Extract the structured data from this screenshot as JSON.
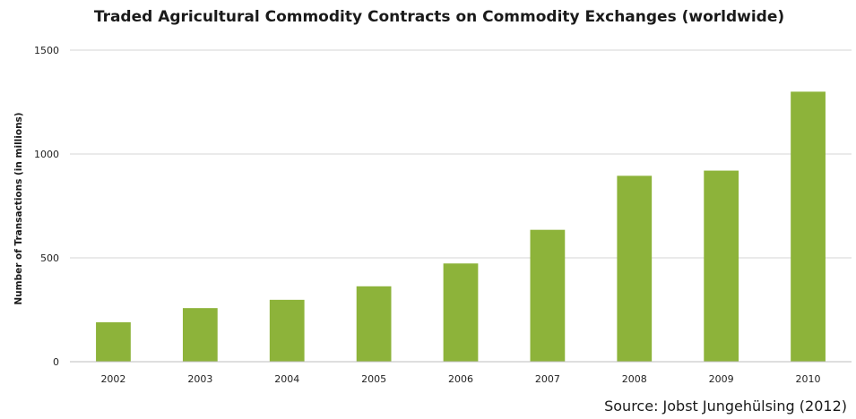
{
  "chart_data": {
    "type": "bar",
    "title": "Traded Agricultural Commodity Contracts on Commodity Exchanges (worldwide)",
    "xlabel": "",
    "ylabel": "Number of Transactions (in millions)",
    "categories": [
      "2002",
      "2003",
      "2004",
      "2005",
      "2006",
      "2007",
      "2008",
      "2009",
      "2010"
    ],
    "series": [
      {
        "values": [
          190,
          258,
          298,
          363,
          473,
          635,
          895,
          920,
          1300
        ]
      }
    ],
    "ylim": [
      0,
      1500
    ],
    "yticks": [
      0,
      500,
      1000,
      1500
    ],
    "grid": true,
    "legend": "none",
    "bar_color": "#8db33a",
    "source": "Source: Jobst Jungehülsing (2012)"
  }
}
